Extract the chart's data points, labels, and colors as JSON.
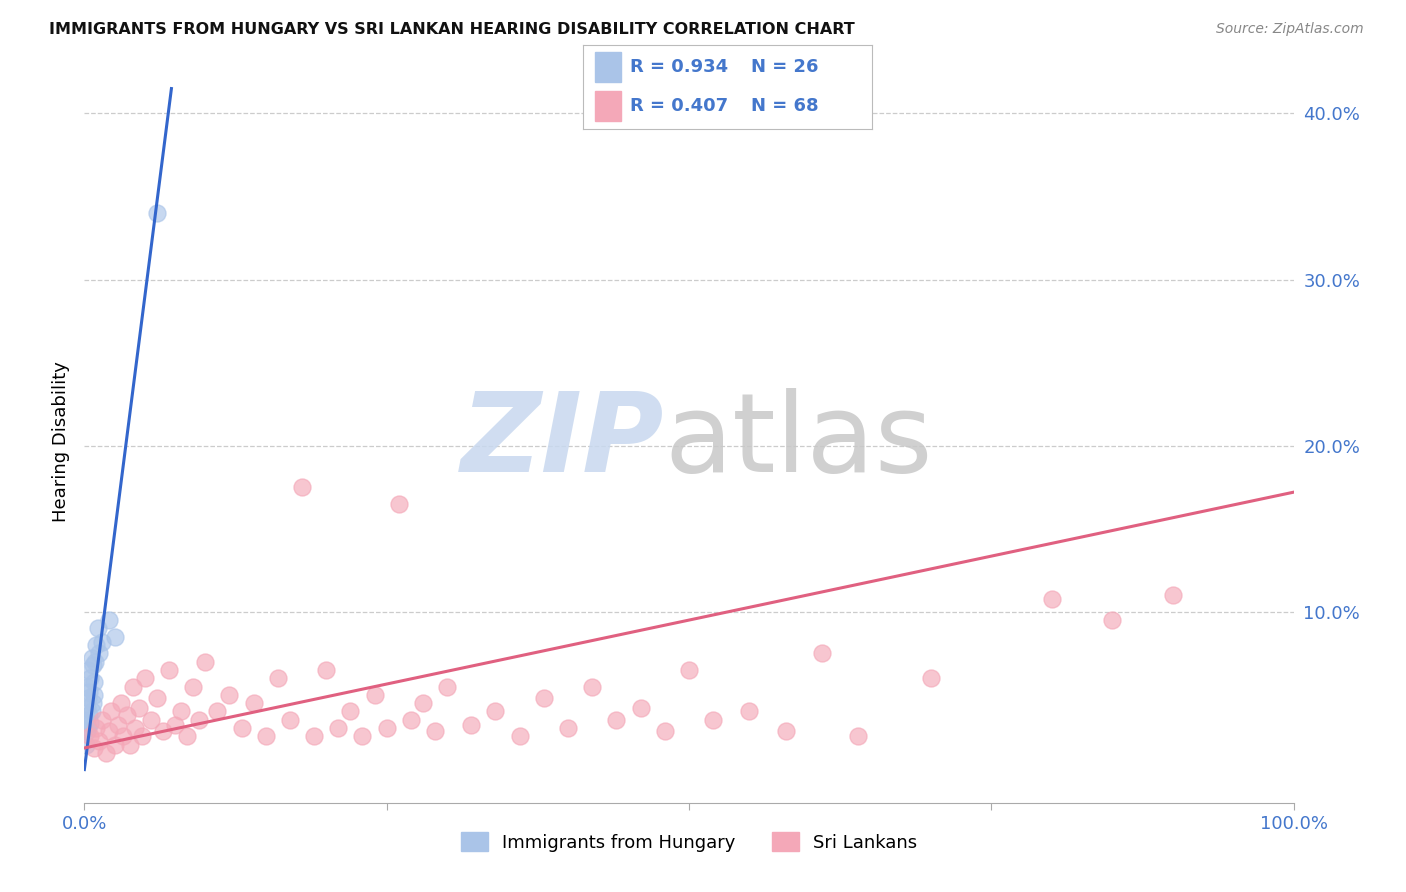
{
  "title": "IMMIGRANTS FROM HUNGARY VS SRI LANKAN HEARING DISABILITY CORRELATION CHART",
  "source": "Source: ZipAtlas.com",
  "ylabel": "Hearing Disability",
  "xlim": [
    0,
    1.0
  ],
  "ylim": [
    -0.015,
    0.42
  ],
  "blue_color": "#aac4e8",
  "pink_color": "#f4a8b8",
  "blue_line_color": "#3366cc",
  "pink_line_color": "#e06080",
  "hungary_scatter_x": [
    0.001,
    0.001,
    0.002,
    0.002,
    0.002,
    0.003,
    0.003,
    0.003,
    0.004,
    0.004,
    0.005,
    0.005,
    0.006,
    0.006,
    0.007,
    0.007,
    0.008,
    0.008,
    0.009,
    0.01,
    0.011,
    0.012,
    0.015,
    0.02,
    0.025,
    0.06
  ],
  "hungary_scatter_y": [
    0.02,
    0.035,
    0.028,
    0.042,
    0.055,
    0.03,
    0.048,
    0.065,
    0.038,
    0.052,
    0.033,
    0.06,
    0.04,
    0.072,
    0.045,
    0.068,
    0.05,
    0.058,
    0.07,
    0.08,
    0.09,
    0.075,
    0.082,
    0.095,
    0.085,
    0.34
  ],
  "srilanka_scatter_x": [
    0.005,
    0.008,
    0.01,
    0.012,
    0.015,
    0.018,
    0.02,
    0.022,
    0.025,
    0.028,
    0.03,
    0.032,
    0.035,
    0.038,
    0.04,
    0.042,
    0.045,
    0.048,
    0.05,
    0.055,
    0.06,
    0.065,
    0.07,
    0.075,
    0.08,
    0.085,
    0.09,
    0.095,
    0.1,
    0.11,
    0.12,
    0.13,
    0.14,
    0.15,
    0.16,
    0.17,
    0.18,
    0.19,
    0.2,
    0.21,
    0.22,
    0.23,
    0.24,
    0.25,
    0.26,
    0.27,
    0.28,
    0.29,
    0.3,
    0.32,
    0.34,
    0.36,
    0.38,
    0.4,
    0.42,
    0.44,
    0.46,
    0.48,
    0.5,
    0.52,
    0.55,
    0.58,
    0.61,
    0.64,
    0.7,
    0.8,
    0.85,
    0.9
  ],
  "srilanka_scatter_y": [
    0.025,
    0.018,
    0.03,
    0.022,
    0.035,
    0.015,
    0.028,
    0.04,
    0.02,
    0.032,
    0.045,
    0.025,
    0.038,
    0.02,
    0.055,
    0.03,
    0.042,
    0.025,
    0.06,
    0.035,
    0.048,
    0.028,
    0.065,
    0.032,
    0.04,
    0.025,
    0.055,
    0.035,
    0.07,
    0.04,
    0.05,
    0.03,
    0.045,
    0.025,
    0.06,
    0.035,
    0.175,
    0.025,
    0.065,
    0.03,
    0.04,
    0.025,
    0.05,
    0.03,
    0.165,
    0.035,
    0.045,
    0.028,
    0.055,
    0.032,
    0.04,
    0.025,
    0.048,
    0.03,
    0.055,
    0.035,
    0.042,
    0.028,
    0.065,
    0.035,
    0.04,
    0.028,
    0.075,
    0.025,
    0.06,
    0.108,
    0.095,
    0.11
  ],
  "blue_trend_x": [
    0.0,
    0.072
  ],
  "blue_trend_y": [
    0.005,
    0.415
  ],
  "pink_trend_x": [
    0.0,
    1.0
  ],
  "pink_trend_y": [
    0.018,
    0.172
  ],
  "legend_blue_label": "Immigrants from Hungary",
  "legend_pink_label": "Sri Lankans",
  "legend_r1": "R = 0.934",
  "legend_n1": "N = 26",
  "legend_r2": "R = 0.407",
  "legend_n2": "N = 68"
}
